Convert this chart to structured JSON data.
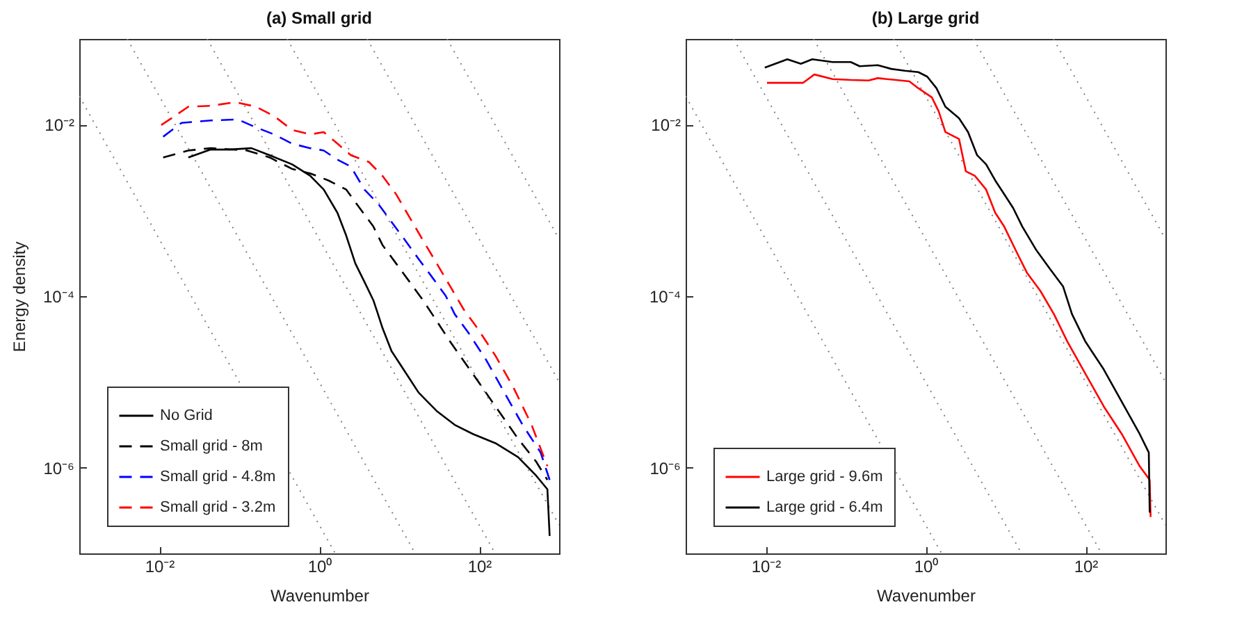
{
  "chart_data": [
    {
      "type": "line",
      "title": "(a) Small grid",
      "xlabel": "Wavenumber",
      "ylabel": "Energy density",
      "log": "xy",
      "legend": "bottom left",
      "xlim": [
        0.001,
        1000
      ],
      "ylim": [
        1e-07,
        0.1
      ],
      "xticks": [
        {
          "value": 0.01,
          "label": "10⁻²"
        },
        {
          "value": 1,
          "label": "10⁰"
        },
        {
          "value": 100,
          "label": "10²"
        }
      ],
      "yticks": [
        {
          "value": 1e-06,
          "label": "10⁻⁶"
        },
        {
          "value": 0.0001,
          "label": "10⁻⁴"
        },
        {
          "value": 0.01,
          "label": "10⁻²"
        }
      ],
      "series": [
        {
          "color": "#808080",
          "line_style": "dotted",
          "x": [
            0.001,
            1.585
          ],
          "values": [
            0.0215,
            1e-07
          ]
        },
        {
          "color": "#808080",
          "line_style": "dotted",
          "x": [
            0.00398,
            15.85
          ],
          "values": [
            0.1,
            1e-07
          ]
        },
        {
          "color": "#808080",
          "line_style": "dotted",
          "x": [
            0.0398,
            158.5
          ],
          "values": [
            0.1,
            1e-07
          ]
        },
        {
          "color": "#808080",
          "line_style": "dotted",
          "x": [
            0.398,
            1000
          ],
          "values": [
            0.1,
            2.15e-07
          ]
        },
        {
          "color": "#808080",
          "line_style": "dotted",
          "x": [
            3.98,
            1000
          ],
          "values": [
            0.1,
            1e-05
          ]
        },
        {
          "color": "#808080",
          "line_style": "dotted",
          "x": [
            39.8,
            1000
          ],
          "values": [
            0.1,
            0.000464
          ]
        },
        {
          "name": "No Grid",
          "color": "#000000",
          "line_style": "solid",
          "x": [
            0.0231,
            0.044,
            0.0743,
            0.142,
            0.24,
            0.458,
            0.773,
            1.14,
            1.69,
            2.18,
            2.83,
            3.68,
            4.76,
            5.44,
            6.19,
            8.03,
            10.4,
            13.5,
            17.5,
            22.7,
            29.5,
            49.5,
            83.6,
            160,
            306,
            515,
            714,
            762
          ],
          "values": [
            0.00415,
            0.00513,
            0.00513,
            0.00532,
            0.00441,
            0.00345,
            0.00253,
            0.00175,
            0.00094,
            0.000507,
            0.000241,
            0.000147,
            8.95e-05,
            6.17e-05,
            4.25e-05,
            2.29e-05,
            1.58e-05,
            1.09e-05,
            7.52e-06,
            5.87e-06,
            4.58e-06,
            3.16e-06,
            2.47e-06,
            1.93e-06,
            1.33e-06,
            8.1e-07,
            5.6e-07,
            1.6e-07
          ]
        },
        {
          "name": "Small grid - 8m",
          "color": "#000000",
          "line_style": "dashed",
          "x": [
            0.0112,
            0.0231,
            0.044,
            0.125,
            0.24,
            0.458,
            0.773,
            1.3,
            2.18,
            3.22,
            4.76,
            6.19,
            9.14,
            13.5,
            19.9,
            25.9,
            43.5,
            83.6,
            160,
            306,
            515,
            714
          ],
          "values": [
            0.00415,
            0.005,
            0.00532,
            0.005,
            0.00415,
            0.00305,
            0.0027,
            0.00224,
            0.00175,
            0.00106,
            0.000649,
            0.000395,
            0.000241,
            0.000147,
            8.95e-05,
            6.17e-05,
            2.94e-05,
            1.24e-05,
            5.19e-06,
            2.18e-06,
            1.18e-06,
            7.2e-07
          ]
        },
        {
          "name": "Small grid - 4.8m",
          "color": "#0000ff",
          "line_style": "dashed",
          "x": [
            0.0112,
            0.019,
            0.044,
            0.0962,
            0.162,
            0.273,
            0.458,
            0.773,
            1.14,
            1.69,
            2.49,
            3.68,
            5.44,
            8.03,
            11.9,
            17.5,
            25.9,
            38.2,
            49.5,
            73.1,
            123,
            207,
            349,
            588,
            762
          ],
          "values": [
            0.00724,
            0.0105,
            0.0112,
            0.0115,
            0.0093,
            0.0077,
            0.00601,
            0.00532,
            0.005,
            0.00391,
            0.00324,
            0.00175,
            0.0012,
            0.000735,
            0.000447,
            0.000272,
            0.000166,
            0.000101,
            6.17e-05,
            3.77e-05,
            1.79e-05,
            7.52e-06,
            3.16e-06,
            1.5e-06,
            7.2e-07
          ]
        },
        {
          "name": "Small grid - 3.2m",
          "color": "#ff0000",
          "line_style": "dashed",
          "x": [
            0.0106,
            0.0231,
            0.044,
            0.0904,
            0.162,
            0.273,
            0.458,
            0.773,
            1.14,
            1.69,
            2.49,
            4.19,
            6.19,
            9.14,
            13.5,
            19.9,
            29.5,
            43.5,
            64.3,
            95,
            160,
            270,
            453,
            714
          ],
          "values": [
            0.00989,
            0.0162,
            0.0166,
            0.0183,
            0.0162,
            0.0126,
            0.0087,
            0.0077,
            0.0082,
            0.00601,
            0.00441,
            0.00367,
            0.00253,
            0.00155,
            0.00083,
            0.000447,
            0.000241,
            0.00013,
            6.98e-05,
            4.25e-05,
            2.02e-05,
            8.53e-06,
            3.16e-06,
            1.04e-06
          ]
        }
      ]
    },
    {
      "type": "line",
      "title": "(b) Large grid",
      "xlabel": "Wavenumber",
      "log": "xy",
      "legend": "bottom left",
      "xlim": [
        0.001,
        1000
      ],
      "ylim": [
        1e-07,
        0.1
      ],
      "xticks": [
        {
          "value": 0.01,
          "label": "10⁻²"
        },
        {
          "value": 1,
          "label": "10⁰"
        },
        {
          "value": 100,
          "label": "10²"
        }
      ],
      "yticks": [
        {
          "value": 1e-06,
          "label": "10⁻⁶"
        },
        {
          "value": 0.0001,
          "label": "10⁻⁴"
        },
        {
          "value": 0.01,
          "label": "10⁻²"
        }
      ],
      "series": [
        {
          "color": "#808080",
          "line_style": "dotted",
          "x": [
            0.001,
            1.585
          ],
          "values": [
            0.0215,
            1e-07
          ]
        },
        {
          "color": "#808080",
          "line_style": "dotted",
          "x": [
            0.00398,
            15.85
          ],
          "values": [
            0.1,
            1e-07
          ]
        },
        {
          "color": "#808080",
          "line_style": "dotted",
          "x": [
            0.0398,
            158.5
          ],
          "values": [
            0.1,
            1e-07
          ]
        },
        {
          "color": "#808080",
          "line_style": "dotted",
          "x": [
            0.398,
            1000
          ],
          "values": [
            0.1,
            2.15e-07
          ]
        },
        {
          "color": "#808080",
          "line_style": "dotted",
          "x": [
            3.98,
            1000
          ],
          "values": [
            0.1,
            1e-05
          ]
        },
        {
          "color": "#808080",
          "line_style": "dotted",
          "x": [
            39.8,
            1000
          ],
          "values": [
            0.1,
            0.000464
          ]
        },
        {
          "name": "Large grid - 9.6m",
          "color": "#ff0000",
          "line_style": "solid",
          "x": [
            0.0104,
            0.0295,
            0.0407,
            0.0687,
            0.116,
            0.194,
            0.252,
            0.424,
            0.627,
            0.813,
            1.2,
            1.46,
            1.77,
            2.62,
            3.19,
            4.14,
            5.72,
            7.43,
            9.62,
            14.2,
            18.5,
            27.3,
            40.3,
            59.5,
            100,
            169,
            284,
            476,
            635,
            652
          ],
          "values": [
            0.0308,
            0.0308,
            0.0385,
            0.034,
            0.0332,
            0.0328,
            0.0349,
            0.0332,
            0.032,
            0.0266,
            0.0208,
            0.0143,
            0.0082,
            0.00682,
            0.00286,
            0.00253,
            0.00175,
            0.00094,
            0.000649,
            0.000308,
            0.000188,
            0.000115,
            6.17e-05,
            2.94e-05,
            1.24e-05,
            5.19e-06,
            2.47e-06,
            1.04e-06,
            7.2e-07,
            2.66e-07
          ]
        },
        {
          "name": "Large grid - 6.4m",
          "color": "#000000",
          "line_style": "solid",
          "x": [
            0.00977,
            0.0187,
            0.0276,
            0.0383,
            0.0687,
            0.116,
            0.15,
            0.252,
            0.373,
            0.551,
            0.813,
            1.05,
            1.37,
            1.77,
            2.62,
            3.4,
            4.41,
            5.72,
            7.43,
            9.62,
            12.5,
            16.2,
            24,
            35.4,
            52.4,
            67.8,
            100,
            169,
            284,
            476,
            619,
            635
          ],
          "values": [
            0.0463,
            0.058,
            0.0513,
            0.058,
            0.0537,
            0.0537,
            0.0481,
            0.0494,
            0.0447,
            0.0426,
            0.041,
            0.0363,
            0.0266,
            0.0162,
            0.0119,
            0.0082,
            0.00441,
            0.00345,
            0.00224,
            0.00155,
            0.00106,
            0.000649,
            0.00035,
            0.000212,
            0.00013,
            6.17e-05,
            2.94e-05,
            1.4e-05,
            5.87e-06,
            2.47e-06,
            1.5e-06,
            3e-07
          ]
        }
      ]
    }
  ]
}
